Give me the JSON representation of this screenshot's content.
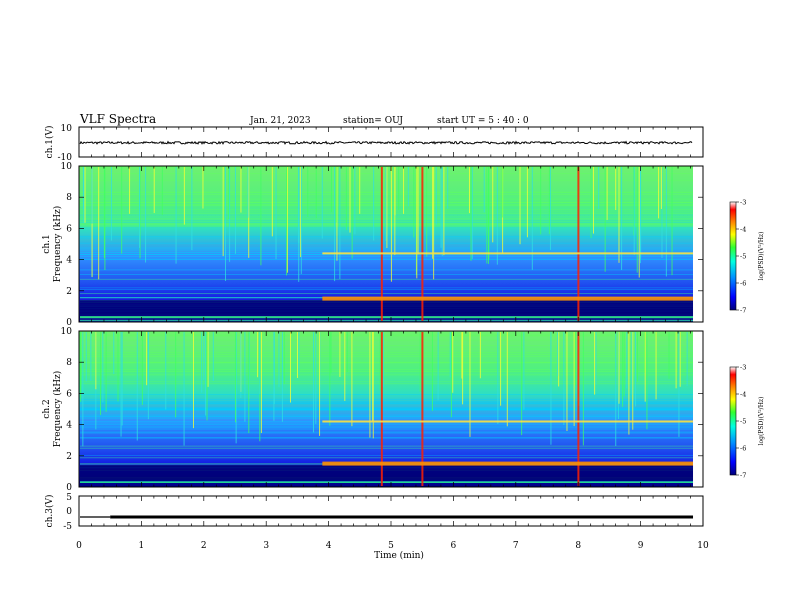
{
  "header": {
    "title": "VLF Spectra",
    "date": "Jan. 21, 2023",
    "station": "station= OUJ",
    "start": "start  UT =   5 : 40 : 0"
  },
  "colors": {
    "spectrogram_scale": [
      "#00008b",
      "#0000ff",
      "#00a0ff",
      "#00ffd0",
      "#40ff40",
      "#ffff00",
      "#ff8000",
      "#ff0000",
      "#8b0000"
    ]
  },
  "chart_data": [
    {
      "type": "line",
      "panel": "ch1-waveform",
      "ylabel": "ch.1(V)",
      "ylim": [
        -10,
        10
      ],
      "yticks": [
        "10",
        "-10"
      ],
      "xlim": [
        0,
        10
      ],
      "series": [
        {
          "approx_level": -0.5,
          "approx_peak_to_peak": 1.5
        }
      ]
    },
    {
      "type": "heatmap",
      "panel": "ch1-spectrogram",
      "ylabel": "ch.1\nFrequency (kHz)",
      "ylim": [
        0,
        10
      ],
      "yticks": [
        "0",
        "2",
        "4",
        "6",
        "8",
        "10"
      ],
      "xlim": [
        0,
        10
      ],
      "colorbar": {
        "label": "log(PSD)(V²/Hz)",
        "range": [
          -7,
          -3
        ],
        "ticks": [
          "-3",
          "-4",
          "-5",
          "-6",
          "-7"
        ]
      },
      "features": {
        "signal_start_min": 3.9,
        "bands_khz_after_start": [
          1.5,
          4.4
        ],
        "strong_spike_times_min": [
          4.85,
          5.5,
          8.0
        ]
      }
    },
    {
      "type": "heatmap",
      "panel": "ch2-spectrogram",
      "ylabel": "ch.2\nFrequency (kHz)",
      "ylim": [
        0,
        10
      ],
      "yticks": [
        "0",
        "2",
        "4",
        "6",
        "8",
        "10"
      ],
      "xlim": [
        0,
        10
      ],
      "colorbar": {
        "label": "log(PSD)(V²/Hz)",
        "range": [
          -7,
          -3
        ],
        "ticks": [
          "-3",
          "-4",
          "-5",
          "-6",
          "-7"
        ]
      },
      "features": {
        "signal_start_min": 3.9,
        "bands_khz_after_start": [
          1.5,
          4.2
        ],
        "strong_spike_times_min": [
          4.85,
          5.5,
          8.0
        ]
      }
    },
    {
      "type": "line",
      "panel": "ch3-trace",
      "ylabel": "ch.3(V)",
      "ylim": [
        -5,
        5
      ],
      "yticks": [
        "5",
        "0",
        "-5"
      ],
      "xlim": [
        0,
        10
      ],
      "series": [
        {
          "approx_level": -2,
          "step_time_min": 0.5
        }
      ]
    }
  ],
  "xaxis": {
    "label": "Time (min)",
    "ticks": [
      "0",
      "1",
      "2",
      "3",
      "4",
      "5",
      "6",
      "7",
      "8",
      "9",
      "10"
    ]
  }
}
